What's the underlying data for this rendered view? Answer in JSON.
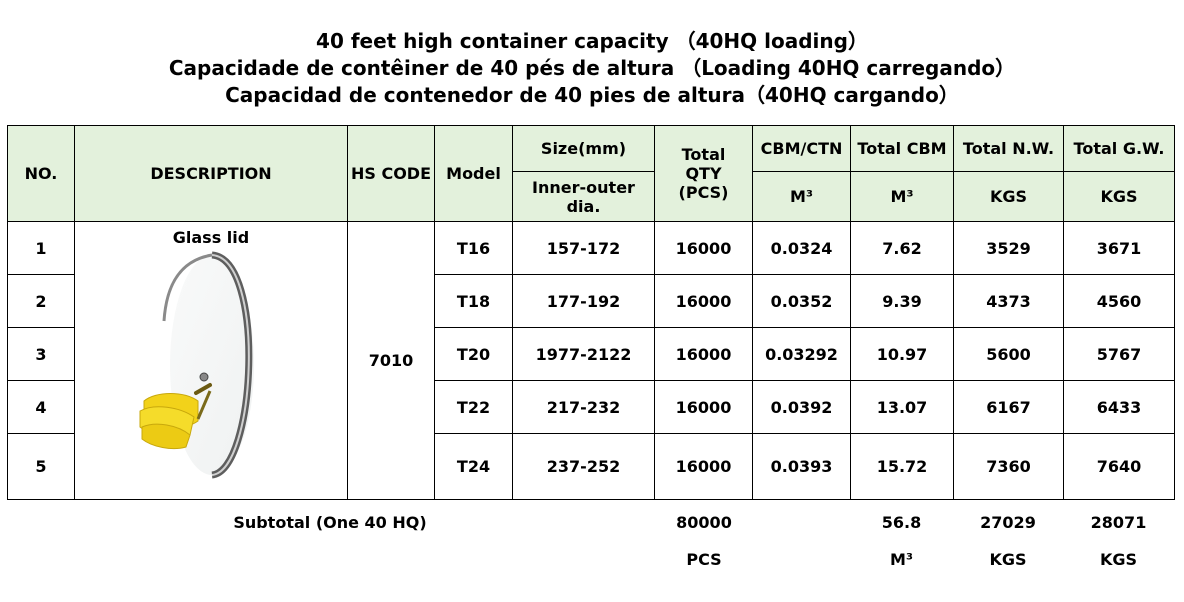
{
  "titles": {
    "line1": "40 feet high container capacity （40HQ loading）",
    "line2": "Capacidade de contêiner de 40 pés de altura （Loading 40HQ carregando）",
    "line3": "Capacidad de contenedor de 40 pies de altura（40HQ cargando）"
  },
  "header": {
    "no": "NO.",
    "description": "DESCRIPTION",
    "hs_code": "HS CODE",
    "model": "Model",
    "size": "Size(mm)",
    "size_sub": "Inner-outer dia.",
    "total_qty": "Total QTY (PCS)",
    "cbm_ctn": "CBM/CTN",
    "cbm_ctn_unit": "M³",
    "total_cbm": "Total CBM",
    "total_cbm_unit": "M³",
    "total_nw": "Total N.W.",
    "total_nw_unit": "KGS",
    "total_gw": "Total G.W.",
    "total_gw_unit": "KGS"
  },
  "product": {
    "description": "Glass lid",
    "hs_code": "7010"
  },
  "rows": [
    {
      "no": "1",
      "model": "T16",
      "size": "157-172",
      "qty": "16000",
      "cbm_ctn": "0.0324",
      "total_cbm": "7.62",
      "nw": "3529",
      "gw": "3671"
    },
    {
      "no": "2",
      "model": "T18",
      "size": "177-192",
      "qty": "16000",
      "cbm_ctn": "0.0352",
      "total_cbm": "9.39",
      "nw": "4373",
      "gw": "4560"
    },
    {
      "no": "3",
      "model": "T20",
      "size": "1977-2122",
      "qty": "16000",
      "cbm_ctn": "0.03292",
      "total_cbm": "10.97",
      "nw": "5600",
      "gw": "5767"
    },
    {
      "no": "4",
      "model": "T22",
      "size": "217-232",
      "qty": "16000",
      "cbm_ctn": "0.0392",
      "total_cbm": "13.07",
      "nw": "6167",
      "gw": "6433"
    },
    {
      "no": "5",
      "model": "T24",
      "size": "237-252",
      "qty": "16000",
      "cbm_ctn": "0.0393",
      "total_cbm": "15.72",
      "nw": "7360",
      "gw": "7640"
    }
  ],
  "subtotal": {
    "label": "Subtotal (One 40 HQ)",
    "qty": "80000",
    "qty_unit": "PCS",
    "cbm": "56.8",
    "cbm_unit": "M³",
    "nw": "27029",
    "nw_unit": "KGS",
    "gw": "28071",
    "gw_unit": "KGS"
  },
  "colors": {
    "header_bg": "#e3f1dc",
    "banana": "#f2d21a",
    "lid_rim": "#7a7a7a"
  }
}
